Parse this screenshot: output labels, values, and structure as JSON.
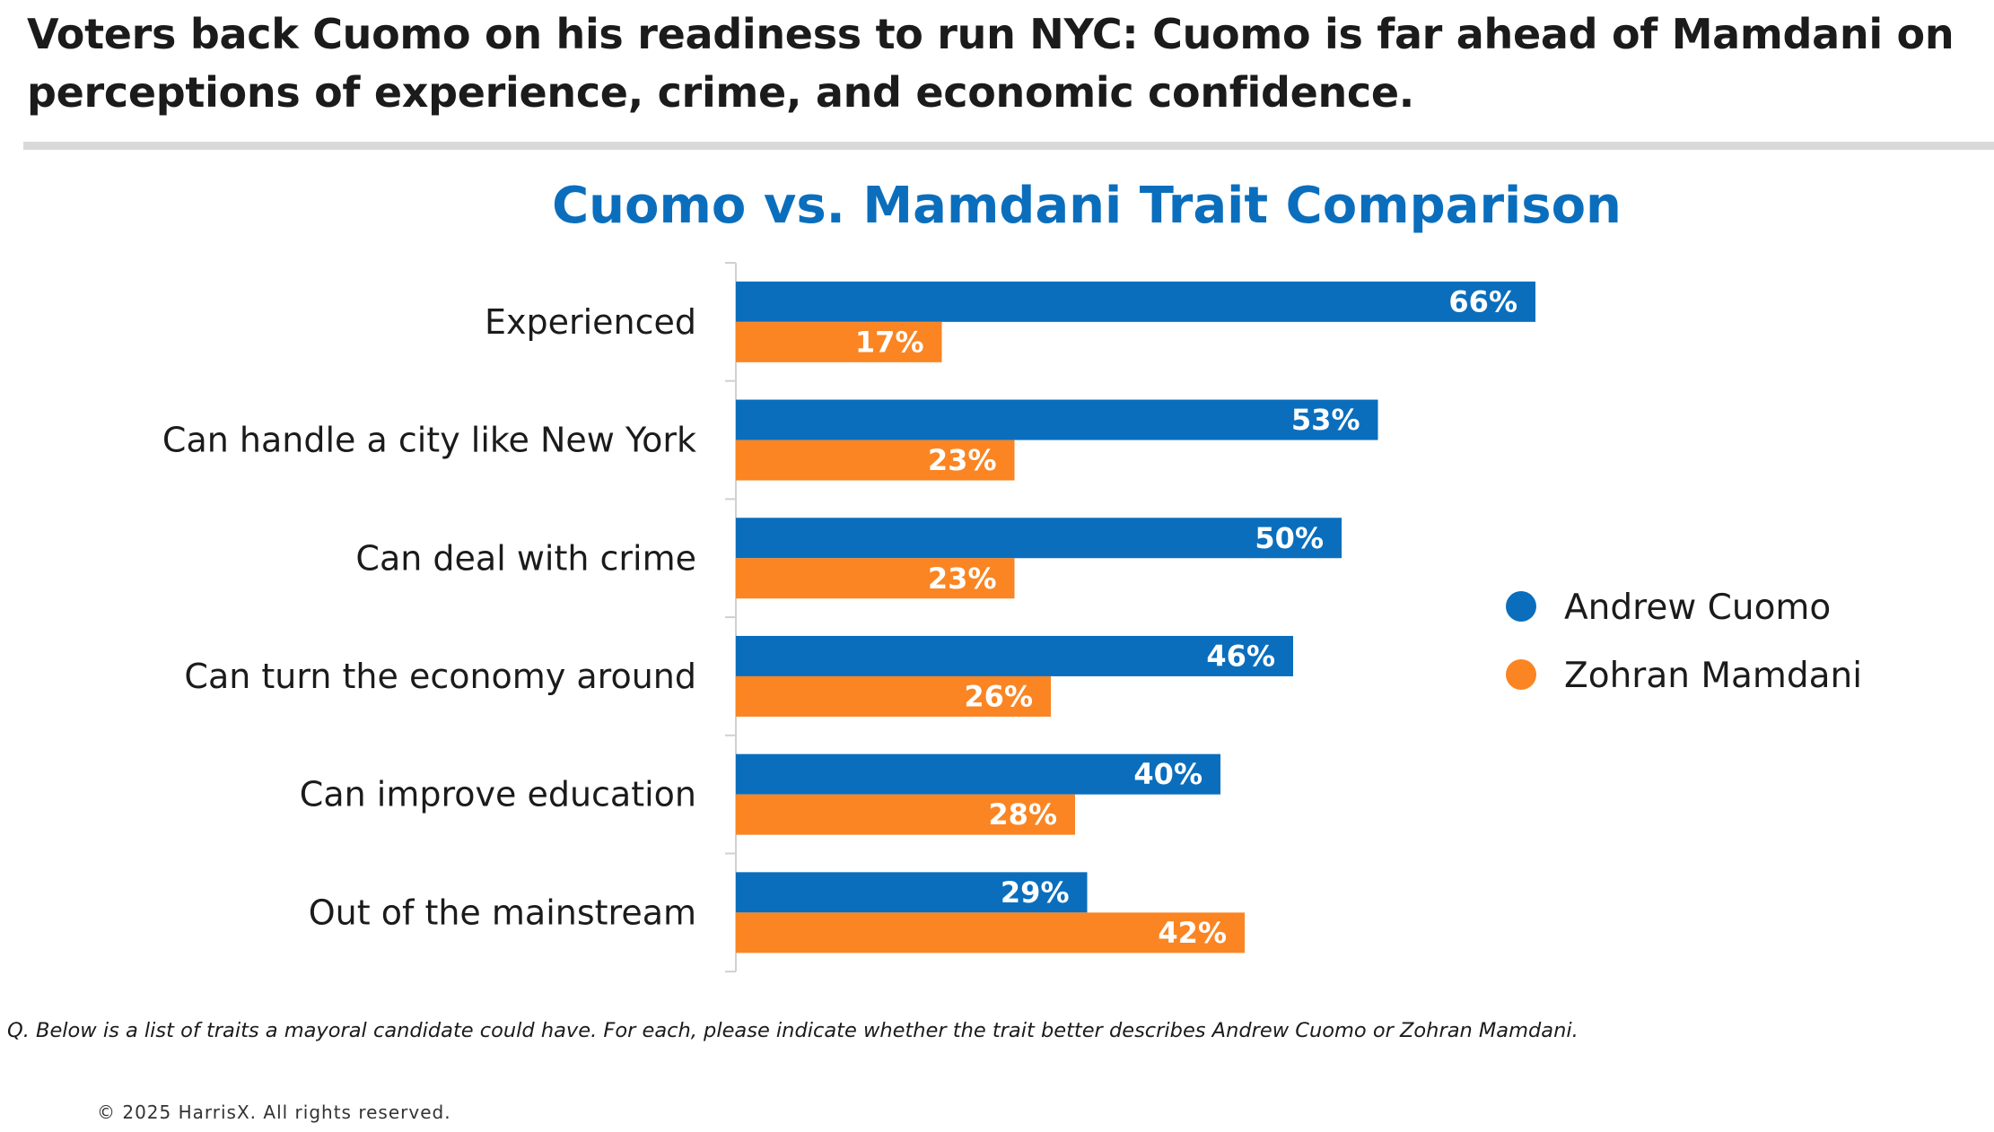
{
  "headline": "Voters back Cuomo on his readiness to run NYC: Cuomo is far ahead of Mamdani on perceptions of experience, crime, and economic confidence.",
  "footnote": "Q. Below is a list of traits a mayoral candidate could have. For each, please indicate whether the trait better describes Andrew Cuomo or Zohran Mamdani.",
  "copyright": "© 2025 HarrisX. All rights reserved.",
  "chart_data": {
    "type": "bar",
    "orientation": "horizontal",
    "title": "Cuomo vs. Mamdani Trait Comparison",
    "categories": [
      "Experienced",
      "Can handle a city like New York",
      "Can deal with crime",
      "Can turn the economy around",
      "Can improve education",
      "Out of the mainstream"
    ],
    "series": [
      {
        "name": "Andrew Cuomo",
        "color": "#0a6ebd",
        "values": [
          66,
          53,
          50,
          46,
          40,
          29
        ]
      },
      {
        "name": "Zohran Mamdani",
        "color": "#fa8522",
        "values": [
          17,
          23,
          23,
          26,
          28,
          42
        ]
      }
    ],
    "value_suffix": "%",
    "xlim": [
      0,
      100
    ],
    "grid": false,
    "legend_position": "right"
  }
}
